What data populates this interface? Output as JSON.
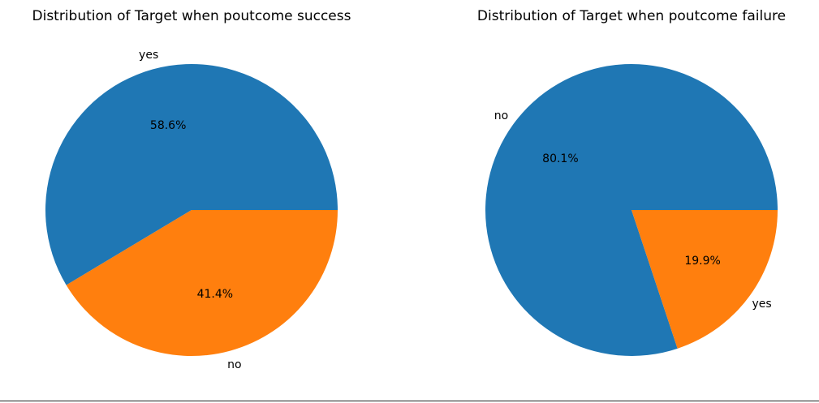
{
  "chart_data": [
    {
      "type": "pie",
      "title": "Distribution of Target when poutcome success",
      "slices": [
        {
          "label": "yes",
          "value": 58.6,
          "pct_label": "58.6%",
          "color": "#1f77b4"
        },
        {
          "label": "no",
          "value": 41.4,
          "pct_label": "41.4%",
          "color": "#ff7f0e"
        }
      ],
      "start_angle_deg": 0,
      "direction": "counterclockwise",
      "legend": "none"
    },
    {
      "type": "pie",
      "title": "Distribution of Target when poutcome failure",
      "slices": [
        {
          "label": "no",
          "value": 80.1,
          "pct_label": "80.1%",
          "color": "#1f77b4"
        },
        {
          "label": "yes",
          "value": 19.9,
          "pct_label": "19.9%",
          "color": "#ff7f0e"
        }
      ],
      "start_angle_deg": 0,
      "direction": "counterclockwise",
      "legend": "none"
    }
  ]
}
